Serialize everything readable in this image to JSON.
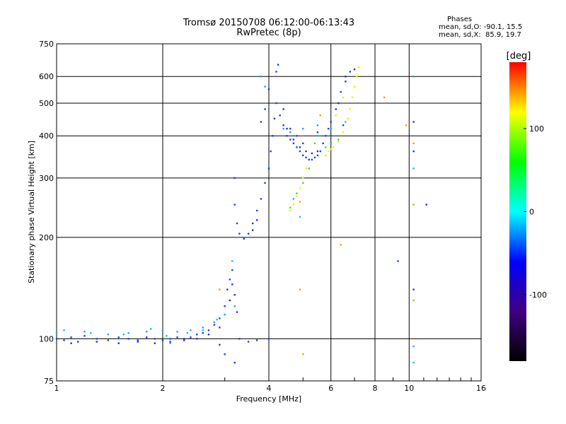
{
  "chart_data": {
    "type": "scatter",
    "title": "Tromsø 20150708 06:12:00-06:13:43",
    "subtitle": "RwPretec (8p)",
    "xlabel": "Frequency [MHz]",
    "ylabel": "Stationary phase Virtual Height [km]",
    "x_scale": "log",
    "y_scale": "log",
    "xlim": [
      1,
      16
    ],
    "ylim": [
      75,
      750
    ],
    "x_ticks": [
      1,
      2,
      4,
      6,
      8,
      10,
      16
    ],
    "y_ticks": [
      75,
      100,
      200,
      300,
      400,
      500,
      600,
      750
    ],
    "grid": true,
    "phase_stats": {
      "heading": "Phases",
      "o_line": "mean, sd,O: -90.1, 15.5",
      "x_line": "mean, sd,X:  85.9, 19.7"
    },
    "colorbar": {
      "label": "[deg]",
      "ticks": [
        100,
        0,
        -100
      ],
      "range": [
        -180,
        180
      ],
      "colors": [
        "#000000",
        "#400080",
        "#0000ff",
        "#00ffff",
        "#00ff00",
        "#ffff00",
        "#ff0000"
      ]
    },
    "series": [
      {
        "phase": -90,
        "color": "#1a3ff0",
        "points": [
          [
            1.0,
            100
          ],
          [
            1.05,
            99
          ],
          [
            1.1,
            101
          ],
          [
            1.15,
            98
          ],
          [
            1.2,
            102
          ],
          [
            1.3,
            100
          ],
          [
            1.4,
            99
          ],
          [
            1.5,
            101
          ],
          [
            1.6,
            100
          ],
          [
            1.7,
            99
          ],
          [
            1.8,
            101
          ],
          [
            1.9,
            100
          ],
          [
            2.0,
            99
          ],
          [
            2.1,
            100
          ],
          [
            2.2,
            101
          ],
          [
            2.3,
            100
          ],
          [
            2.4,
            101
          ],
          [
            2.5,
            103
          ],
          [
            2.6,
            104
          ],
          [
            2.7,
            106
          ],
          [
            2.8,
            110
          ],
          [
            2.9,
            115
          ],
          [
            3.0,
            125
          ],
          [
            3.05,
            140
          ],
          [
            3.1,
            150
          ],
          [
            3.15,
            160
          ],
          [
            3.2,
            300
          ],
          [
            3.2,
            250
          ],
          [
            3.25,
            220
          ],
          [
            3.3,
            205
          ],
          [
            3.4,
            198
          ],
          [
            3.5,
            205
          ],
          [
            3.6,
            220
          ],
          [
            3.7,
            240
          ],
          [
            3.8,
            260
          ],
          [
            3.9,
            290
          ],
          [
            4.0,
            320
          ],
          [
            4.05,
            360
          ],
          [
            4.1,
            400
          ],
          [
            4.15,
            450
          ],
          [
            4.2,
            500
          ],
          [
            4.3,
            460
          ],
          [
            4.4,
            430
          ],
          [
            4.5,
            400
          ],
          [
            4.6,
            390
          ],
          [
            4.7,
            380
          ],
          [
            4.8,
            370
          ],
          [
            4.9,
            360
          ],
          [
            5.0,
            350
          ],
          [
            5.1,
            345
          ],
          [
            5.2,
            340
          ],
          [
            5.3,
            340
          ],
          [
            5.4,
            345
          ],
          [
            5.5,
            350
          ],
          [
            5.6,
            360
          ],
          [
            5.7,
            380
          ],
          [
            5.8,
            400
          ],
          [
            5.9,
            420
          ],
          [
            6.0,
            440
          ],
          [
            6.2,
            480
          ],
          [
            6.4,
            540
          ],
          [
            6.6,
            580
          ],
          [
            6.8,
            620
          ],
          [
            4.2,
            620
          ],
          [
            4.25,
            650
          ],
          [
            3.8,
            440
          ],
          [
            3.9,
            480
          ],
          [
            4.0,
            550
          ],
          [
            4.6,
            420
          ],
          [
            4.8,
            400
          ],
          [
            5.0,
            380
          ],
          [
            5.5,
            410
          ],
          [
            6.0,
            400
          ],
          [
            6.5,
            430
          ],
          [
            3.3,
            100
          ],
          [
            3.5,
            98
          ],
          [
            3.7,
            99
          ],
          [
            4.0,
            100
          ],
          [
            3.2,
            85
          ],
          [
            3.0,
            90
          ],
          [
            9.3,
            170
          ],
          [
            10.3,
            360
          ]
        ]
      },
      {
        "phase": -110,
        "color": "#2b2bd8",
        "points": [
          [
            1.1,
            97
          ],
          [
            1.3,
            98
          ],
          [
            1.5,
            97
          ],
          [
            1.7,
            98
          ],
          [
            1.9,
            97
          ],
          [
            2.1,
            98
          ],
          [
            2.3,
            99
          ],
          [
            2.5,
            100
          ],
          [
            2.7,
            103
          ],
          [
            2.9,
            108
          ],
          [
            3.1,
            130
          ],
          [
            3.15,
            145
          ],
          [
            3.2,
            135
          ],
          [
            3.25,
            120
          ],
          [
            3.6,
            210
          ],
          [
            3.7,
            225
          ],
          [
            4.4,
            480
          ],
          [
            4.5,
            420
          ],
          [
            4.7,
            390
          ],
          [
            4.9,
            370
          ],
          [
            5.1,
            360
          ],
          [
            5.3,
            355
          ],
          [
            5.5,
            360
          ],
          [
            6.0,
            380
          ],
          [
            6.3,
            500
          ],
          [
            6.6,
            600
          ],
          [
            7.0,
            630
          ],
          [
            10.3,
            440
          ],
          [
            10.3,
            140
          ],
          [
            11.2,
            250
          ],
          [
            2.9,
            96
          ]
        ]
      },
      {
        "phase": -60,
        "color": "#3399ff",
        "points": [
          [
            1.0,
            104
          ],
          [
            1.2,
            105
          ],
          [
            1.4,
            103
          ],
          [
            1.6,
            104
          ],
          [
            1.8,
            105
          ],
          [
            2.0,
            106
          ],
          [
            2.2,
            105
          ],
          [
            2.4,
            106
          ],
          [
            2.6,
            108
          ],
          [
            2.8,
            112
          ],
          [
            3.0,
            118
          ],
          [
            3.2,
            125
          ],
          [
            3.8,
            600
          ],
          [
            3.9,
            560
          ],
          [
            4.4,
            420
          ],
          [
            4.6,
            410
          ],
          [
            5.0,
            420
          ],
          [
            5.5,
            430
          ],
          [
            6.0,
            420
          ],
          [
            10.3,
            600
          ],
          [
            10.3,
            95
          ],
          [
            2.1,
            97
          ]
        ]
      },
      {
        "phase": -20,
        "color": "#00c8e0",
        "points": [
          [
            1.05,
            106
          ],
          [
            1.25,
            104
          ],
          [
            1.55,
            103
          ],
          [
            1.85,
            107
          ],
          [
            2.05,
            102
          ],
          [
            2.35,
            104
          ],
          [
            2.6,
            106
          ],
          [
            2.85,
            114
          ],
          [
            3.15,
            170
          ],
          [
            4.7,
            260
          ],
          [
            5.0,
            300
          ],
          [
            5.5,
            400
          ],
          [
            6.0,
            380
          ],
          [
            10.3,
            320
          ],
          [
            10.3,
            85
          ],
          [
            4.9,
            230
          ]
        ]
      },
      {
        "phase": 30,
        "color": "#33e633",
        "points": [
          [
            4.6,
            245
          ],
          [
            4.8,
            270
          ],
          [
            5.0,
            290
          ],
          [
            5.2,
            320
          ],
          [
            5.4,
            380
          ],
          [
            5.8,
            370
          ],
          [
            6.0,
            365
          ],
          [
            6.3,
            390
          ],
          [
            6.6,
            440
          ]
        ]
      },
      {
        "phase": 80,
        "color": "#f0f000",
        "points": [
          [
            4.6,
            240
          ],
          [
            4.7,
            250
          ],
          [
            4.8,
            265
          ],
          [
            4.9,
            280
          ],
          [
            5.0,
            300
          ],
          [
            5.1,
            320
          ],
          [
            5.9,
            360
          ],
          [
            6.0,
            365
          ],
          [
            6.1,
            370
          ],
          [
            6.3,
            385
          ],
          [
            6.5,
            410
          ],
          [
            6.7,
            450
          ],
          [
            6.8,
            480
          ],
          [
            6.9,
            520
          ],
          [
            7.0,
            560
          ],
          [
            7.1,
            600
          ],
          [
            7.2,
            640
          ],
          [
            6.2,
            460
          ],
          [
            6.5,
            520
          ],
          [
            5.8,
            350
          ]
        ]
      },
      {
        "phase": 130,
        "color": "#ff9900",
        "points": [
          [
            4.9,
            255
          ],
          [
            5.0,
            90
          ],
          [
            5.6,
            460
          ],
          [
            6.4,
            190
          ],
          [
            8.5,
            520
          ],
          [
            9.8,
            430
          ],
          [
            10.3,
            380
          ],
          [
            10.3,
            250
          ],
          [
            10.3,
            130
          ],
          [
            4.9,
            140
          ],
          [
            2.9,
            140
          ]
        ]
      }
    ]
  }
}
